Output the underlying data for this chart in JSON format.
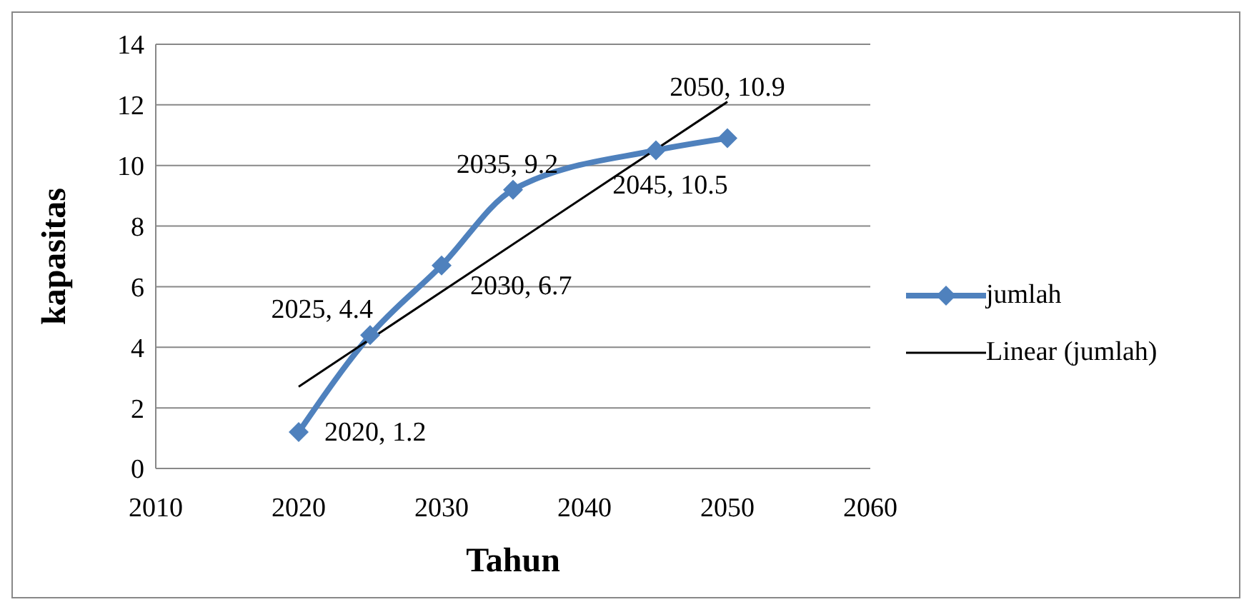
{
  "chart_data": {
    "type": "line",
    "xlabel": "Tahun",
    "ylabel": "kapasitas",
    "xlim": [
      2010,
      2060
    ],
    "xticks": [
      2010,
      2020,
      2030,
      2040,
      2050,
      2060
    ],
    "ylim": [
      0,
      14
    ],
    "yticks": [
      0,
      2,
      4,
      6,
      8,
      10,
      12,
      14
    ],
    "grid": "y",
    "legend": "right",
    "marker": "diamond",
    "line_style": "solid",
    "series": [
      {
        "name": "jumlah",
        "color": "#4f81bd",
        "x": [
          2020,
          2025,
          2030,
          2035,
          2045,
          2050
        ],
        "values": [
          1.2,
          4.4,
          6.7,
          9.2,
          10.5,
          10.9
        ],
        "value_labels": [
          "2020, 1.2",
          "2025, 4.4",
          "2030, 6.7",
          "2035, 9.2",
          "2045, 10.5",
          "2050, 10.9"
        ]
      },
      {
        "name": "Linear (jumlah)",
        "color": "#000000",
        "type": "line",
        "marker": "none",
        "x": [
          2020,
          2050
        ],
        "values": [
          2.7,
          12.1
        ]
      }
    ]
  }
}
